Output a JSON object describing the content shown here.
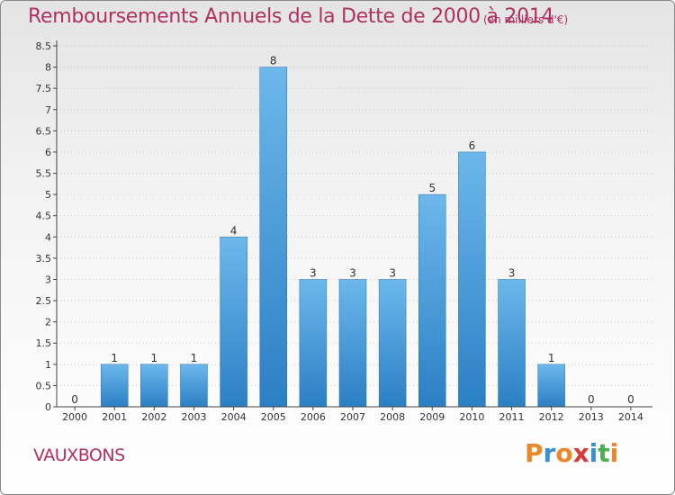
{
  "title": "Remboursements Annuels de la Dette de 2000 à 2014",
  "subtitle": "(en milliers d'€)",
  "commune": "VAUXBONS",
  "logo": {
    "text": "Proxiti",
    "colors": [
      "#e8882a",
      "#3a8fd6",
      "#e8882a",
      "#d63a3a",
      "#3a8fd6",
      "#4caf50",
      "#e8882a"
    ]
  },
  "colors": {
    "bar_light": "#6cb8ec",
    "bar_dark": "#2b7fc4",
    "title": "#b03060",
    "axis": "#444444",
    "grid": "#cccccc"
  },
  "chart_data": {
    "type": "bar",
    "title": "Remboursements Annuels de la Dette de 2000 à 2014",
    "subtitle": "(en milliers d'€)",
    "categories": [
      "2000",
      "2001",
      "2002",
      "2003",
      "2004",
      "2005",
      "2006",
      "2007",
      "2008",
      "2009",
      "2010",
      "2011",
      "2012",
      "2013",
      "2014"
    ],
    "values": [
      0,
      1,
      1,
      1,
      4,
      8,
      3,
      3,
      3,
      5,
      6,
      3,
      1,
      0,
      0
    ],
    "value_labels": [
      "0",
      "1",
      "1",
      "1",
      "4",
      "8",
      "3",
      "3",
      "3",
      "5",
      "6",
      "3",
      "1",
      "0",
      "0"
    ],
    "yticks": [
      "0",
      "0.5",
      "1",
      "1.5",
      "2",
      "2.5",
      "3",
      "3.5",
      "4",
      "4.5",
      "5",
      "5.5",
      "6",
      "6.5",
      "7",
      "7.5",
      "8",
      "8.5"
    ],
    "ylim": [
      0,
      8.5
    ],
    "grid": true,
    "xlabel": "",
    "ylabel": ""
  }
}
